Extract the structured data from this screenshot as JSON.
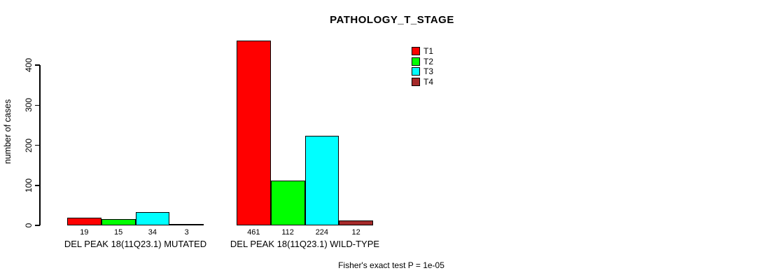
{
  "title": "PATHOLOGY_T_STAGE",
  "footer": "Fisher's exact test P = 1e-05",
  "chart_data": {
    "type": "bar",
    "title": "PATHOLOGY_T_STAGE",
    "xlabel": "",
    "ylabel": "number of cases",
    "yticks": [
      0,
      100,
      200,
      300,
      400
    ],
    "ylim": [
      0,
      461
    ],
    "grid": false,
    "legend_position": "top-right",
    "bar_border_color": "#000000",
    "categories": [
      "DEL PEAK 18(11Q23.1) MUTATED",
      "DEL PEAK 18(11Q23.1) WILD-TYPE"
    ],
    "groups": [
      {
        "label": "DEL PEAK 18(11Q23.1) MUTATED",
        "values": [
          19,
          15,
          34,
          3
        ]
      },
      {
        "label": "DEL PEAK 18(11Q23.1) WILD-TYPE",
        "values": [
          461,
          112,
          224,
          12
        ]
      }
    ],
    "series": [
      {
        "name": "T1",
        "color": "#FF0000",
        "values": [
          19,
          461
        ]
      },
      {
        "name": "T2",
        "color": "#00FF00",
        "values": [
          15,
          112
        ]
      },
      {
        "name": "T3",
        "color": "#00FFFF",
        "values": [
          34,
          224
        ]
      },
      {
        "name": "T4",
        "color": "#A52A2A",
        "values": [
          3,
          12
        ]
      }
    ],
    "annotation": "Fisher's exact test P = 1e-05"
  }
}
